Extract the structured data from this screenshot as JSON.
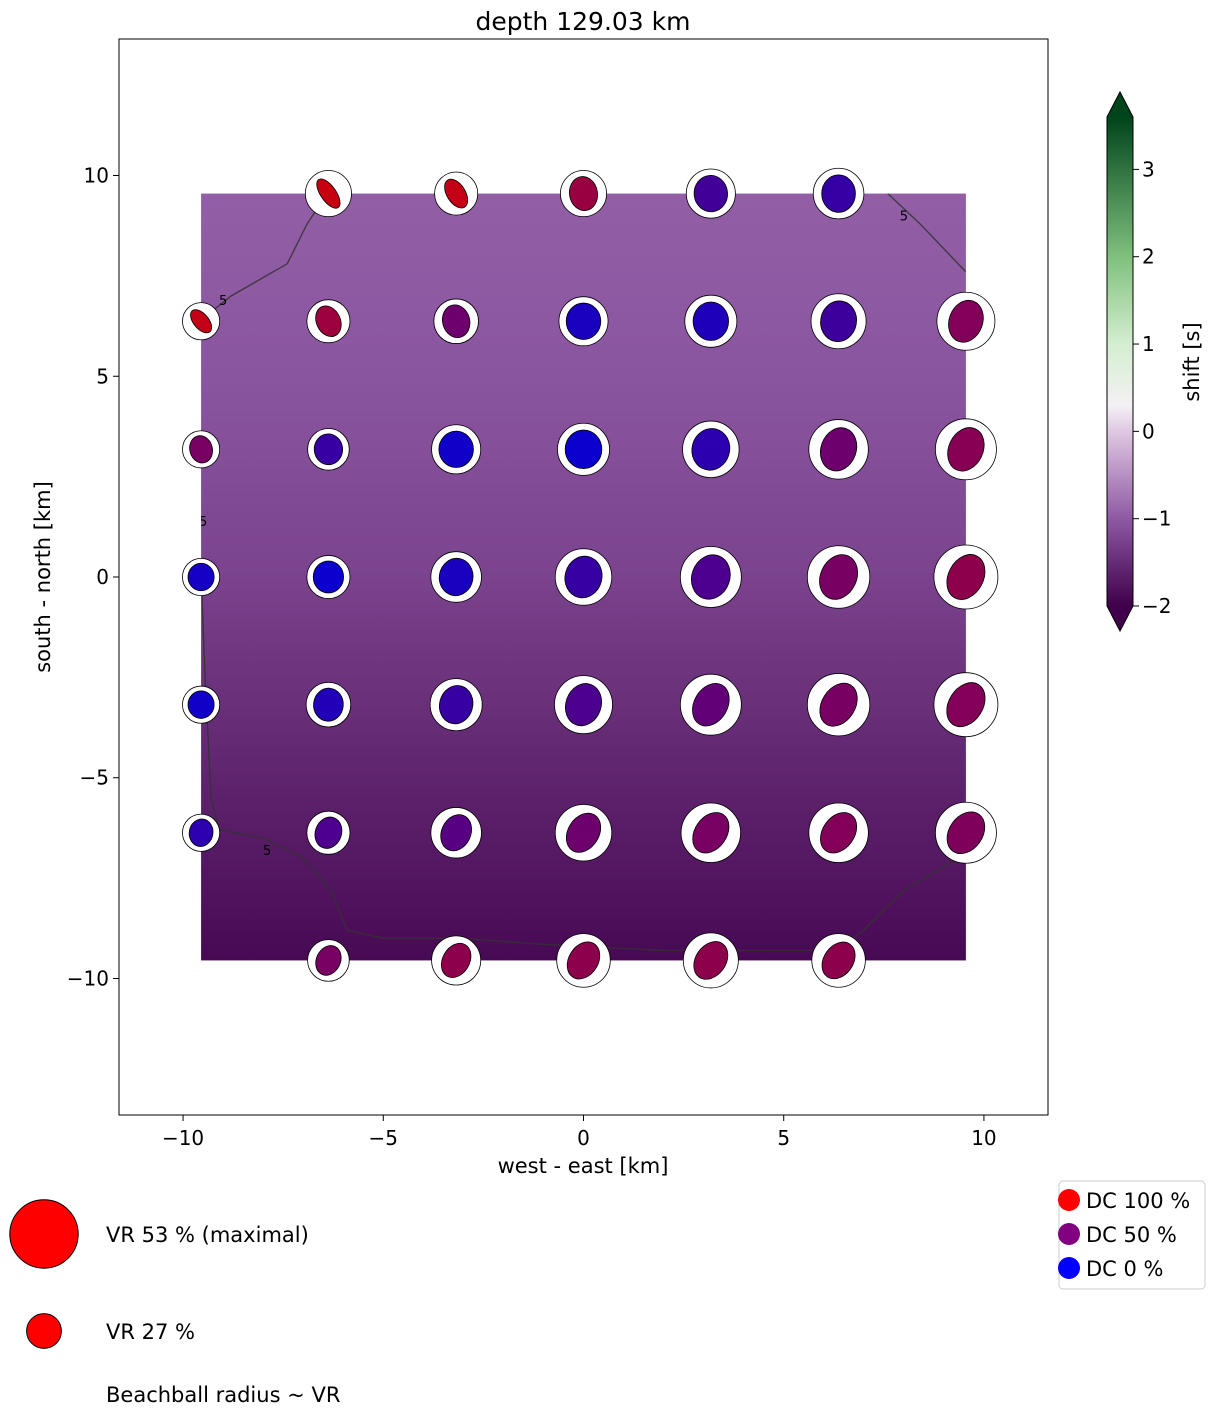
{
  "chart_data": {
    "type": "heatmap",
    "title": "depth 129.03 km",
    "xlabel": "west - east [km]",
    "ylabel": "south - north [km]",
    "xlim": [
      -11.6,
      11.6
    ],
    "ylim": [
      -13.4,
      13.4
    ],
    "xticks": [
      -10,
      -5,
      0,
      5,
      10
    ],
    "xtick_labels": [
      "−10",
      "−5",
      "0",
      "5",
      "10"
    ],
    "yticks": [
      -10,
      -5,
      0,
      5,
      10
    ],
    "ytick_labels": [
      "−10",
      "−5",
      "0",
      "5",
      "10"
    ],
    "field_extent": {
      "x": [
        -9.55,
        9.55
      ],
      "y": [
        -9.55,
        9.55
      ]
    },
    "field_gradient_stops": [
      {
        "y": 9.55,
        "shift": -0.95
      },
      {
        "y": 5.0,
        "shift": -1.05
      },
      {
        "y": 0.0,
        "shift": -1.25
      },
      {
        "y": -5.0,
        "shift": -1.6
      },
      {
        "y": -9.55,
        "shift": -1.9
      }
    ],
    "contour": {
      "level": 5,
      "label": "5",
      "segments": [
        [
          [
            -9.55,
            6.4
          ],
          [
            -8.8,
            7.0
          ],
          [
            -7.4,
            7.8
          ],
          [
            -6.9,
            8.8
          ],
          [
            -6.4,
            9.55
          ]
        ],
        [
          [
            7.6,
            9.55
          ],
          [
            8.4,
            8.8
          ],
          [
            9.55,
            7.6
          ]
        ],
        [
          [
            -9.55,
            0.1
          ],
          [
            -9.45,
            -2.5
          ],
          [
            -9.3,
            -5.5
          ],
          [
            -9.1,
            -6.3
          ],
          [
            -8.0,
            -6.5
          ],
          [
            -7.0,
            -7.0
          ],
          [
            -6.3,
            -7.8
          ],
          [
            -5.9,
            -8.8
          ],
          [
            -5.0,
            -9.0
          ],
          [
            -3.0,
            -9.0
          ],
          [
            -1.0,
            -9.15
          ],
          [
            2.0,
            -9.3
          ],
          [
            4.5,
            -9.3
          ],
          [
            6.3,
            -9.3
          ],
          [
            7.0,
            -8.8
          ],
          [
            8.0,
            -7.8
          ],
          [
            9.55,
            -6.9
          ]
        ]
      ],
      "label_points": [
        [
          -9.0,
          6.9
        ],
        [
          8.0,
          9.0
        ],
        [
          -9.5,
          1.4
        ],
        [
          -7.9,
          -6.8
        ]
      ]
    },
    "colorbar": {
      "label": "shift [s]",
      "min": -2.0,
      "max": 3.6,
      "ticks": [
        3,
        2,
        1,
        0,
        -1,
        -2
      ],
      "tick_labels": [
        "3",
        "2",
        "1",
        "0",
        "−1",
        "−2"
      ],
      "colormap": [
        {
          "v": -2.0,
          "color": "#40004b"
        },
        {
          "v": -1.0,
          "color": "#8e59a3"
        },
        {
          "v": 0.0,
          "color": "#e0c8e2"
        },
        {
          "v": 0.3,
          "color": "#f4f1f4"
        },
        {
          "v": 1.0,
          "color": "#d4eecf"
        },
        {
          "v": 2.0,
          "color": "#7fc07d"
        },
        {
          "v": 3.6,
          "color": "#00441b"
        }
      ]
    },
    "beachball_grid": {
      "x": [
        -9.55,
        -6.37,
        -3.18,
        0,
        3.18,
        6.37,
        9.55
      ],
      "y": [
        9.55,
        6.37,
        3.18,
        0,
        -3.18,
        -6.37,
        -9.55
      ]
    },
    "beachballs": [
      {
        "x": -6.37,
        "y": 9.55,
        "vr": 31,
        "dc": 92,
        "strike": -35,
        "elong": 0.45
      },
      {
        "x": -3.18,
        "y": 9.55,
        "vr": 29,
        "dc": 90,
        "strike": -32,
        "elong": 0.58
      },
      {
        "x": 0,
        "y": 9.55,
        "vr": 31,
        "dc": 70,
        "strike": -10,
        "elong": 0.82
      },
      {
        "x": 3.18,
        "y": 9.55,
        "vr": 33,
        "dc": 30,
        "strike": -5,
        "elong": 0.92
      },
      {
        "x": 6.37,
        "y": 9.55,
        "vr": 34,
        "dc": 24,
        "strike": 0,
        "elong": 0.9
      },
      {
        "x": -9.55,
        "y": 6.37,
        "vr": 25,
        "dc": 90,
        "strike": -40,
        "elong": 0.55
      },
      {
        "x": -6.37,
        "y": 6.37,
        "vr": 29,
        "dc": 72,
        "strike": -25,
        "elong": 0.75
      },
      {
        "x": -3.18,
        "y": 6.37,
        "vr": 30,
        "dc": 50,
        "strike": -15,
        "elong": 0.82
      },
      {
        "x": 0,
        "y": 6.37,
        "vr": 33,
        "dc": 12,
        "strike": 0,
        "elong": 0.95
      },
      {
        "x": 3.18,
        "y": 6.37,
        "vr": 35,
        "dc": 14,
        "strike": 0,
        "elong": 0.92
      },
      {
        "x": 6.37,
        "y": 6.37,
        "vr": 37,
        "dc": 28,
        "strike": 10,
        "elong": 0.88
      },
      {
        "x": 9.55,
        "y": 6.37,
        "vr": 39,
        "dc": 60,
        "strike": 20,
        "elong": 0.78
      },
      {
        "x": -9.55,
        "y": 3.18,
        "vr": 25,
        "dc": 55,
        "strike": -15,
        "elong": 0.82
      },
      {
        "x": -6.37,
        "y": 3.18,
        "vr": 28,
        "dc": 25,
        "strike": -5,
        "elong": 0.92
      },
      {
        "x": -3.18,
        "y": 3.18,
        "vr": 33,
        "dc": 8,
        "strike": 0,
        "elong": 0.95
      },
      {
        "x": 0,
        "y": 3.18,
        "vr": 35,
        "dc": 5,
        "strike": 0,
        "elong": 0.95
      },
      {
        "x": 3.18,
        "y": 3.18,
        "vr": 38,
        "dc": 20,
        "strike": 15,
        "elong": 0.9
      },
      {
        "x": 6.37,
        "y": 3.18,
        "vr": 40,
        "dc": 50,
        "strike": 20,
        "elong": 0.8
      },
      {
        "x": 9.55,
        "y": 3.18,
        "vr": 41,
        "dc": 62,
        "strike": 25,
        "elong": 0.76
      },
      {
        "x": -9.55,
        "y": 0,
        "vr": 25,
        "dc": 10,
        "strike": 0,
        "elong": 0.95
      },
      {
        "x": -6.37,
        "y": 0,
        "vr": 29,
        "dc": 5,
        "strike": 0,
        "elong": 0.95
      },
      {
        "x": -3.18,
        "y": 0,
        "vr": 34,
        "dc": 12,
        "strike": 10,
        "elong": 0.9
      },
      {
        "x": 0,
        "y": 0,
        "vr": 38,
        "dc": 25,
        "strike": 15,
        "elong": 0.88
      },
      {
        "x": 3.18,
        "y": 0,
        "vr": 41,
        "dc": 35,
        "strike": 20,
        "elong": 0.84
      },
      {
        "x": 6.37,
        "y": 0,
        "vr": 42,
        "dc": 55,
        "strike": 25,
        "elong": 0.78
      },
      {
        "x": 9.55,
        "y": 0,
        "vr": 43,
        "dc": 65,
        "strike": 28,
        "elong": 0.74
      },
      {
        "x": -9.55,
        "y": -3.18,
        "vr": 25,
        "dc": 8,
        "strike": 0,
        "elong": 0.95
      },
      {
        "x": -6.37,
        "y": -3.18,
        "vr": 30,
        "dc": 15,
        "strike": 5,
        "elong": 0.9
      },
      {
        "x": -3.18,
        "y": -3.18,
        "vr": 35,
        "dc": 25,
        "strike": 15,
        "elong": 0.86
      },
      {
        "x": 0,
        "y": -3.18,
        "vr": 39,
        "dc": 35,
        "strike": 20,
        "elong": 0.82
      },
      {
        "x": 3.18,
        "y": -3.18,
        "vr": 41,
        "dc": 45,
        "strike": 30,
        "elong": 0.74
      },
      {
        "x": 6.37,
        "y": -3.18,
        "vr": 42,
        "dc": 55,
        "strike": 32,
        "elong": 0.72
      },
      {
        "x": 9.55,
        "y": -3.18,
        "vr": 43,
        "dc": 60,
        "strike": 32,
        "elong": 0.72
      },
      {
        "x": -9.55,
        "y": -6.37,
        "vr": 25,
        "dc": 20,
        "strike": 10,
        "elong": 0.86
      },
      {
        "x": -6.37,
        "y": -6.37,
        "vr": 29,
        "dc": 35,
        "strike": 20,
        "elong": 0.82
      },
      {
        "x": -3.18,
        "y": -6.37,
        "vr": 34,
        "dc": 40,
        "strike": 25,
        "elong": 0.78
      },
      {
        "x": 0,
        "y": -6.37,
        "vr": 38,
        "dc": 50,
        "strike": 32,
        "elong": 0.74
      },
      {
        "x": 3.18,
        "y": -6.37,
        "vr": 40,
        "dc": 55,
        "strike": 35,
        "elong": 0.72
      },
      {
        "x": 6.37,
        "y": -6.37,
        "vr": 40,
        "dc": 60,
        "strike": 35,
        "elong": 0.72
      },
      {
        "x": 9.55,
        "y": -6.37,
        "vr": 41,
        "dc": 58,
        "strike": 35,
        "elong": 0.74
      },
      {
        "x": -6.37,
        "y": -9.55,
        "vr": 28,
        "dc": 55,
        "strike": 25,
        "elong": 0.78
      },
      {
        "x": -3.18,
        "y": -9.55,
        "vr": 33,
        "dc": 65,
        "strike": 30,
        "elong": 0.74
      },
      {
        "x": 0,
        "y": -9.55,
        "vr": 36,
        "dc": 65,
        "strike": 32,
        "elong": 0.74
      },
      {
        "x": 3.18,
        "y": -9.55,
        "vr": 37,
        "dc": 65,
        "strike": 35,
        "elong": 0.74
      },
      {
        "x": 6.37,
        "y": -9.55,
        "vr": 36,
        "dc": 65,
        "strike": 35,
        "elong": 0.74
      }
    ],
    "dc_colors": {
      "dc100": "#ff0000",
      "dc50": "#800080",
      "dc0": "#0000ff"
    },
    "dc_legend": [
      {
        "label": "DC 100 %",
        "color": "#ff0000"
      },
      {
        "label": "DC 50 %",
        "color": "#800080"
      },
      {
        "label": "DC 0 %",
        "color": "#0000ff"
      }
    ],
    "vr_legend": [
      {
        "label": "VR 53 % (maximal)",
        "vr": 53,
        "color": "#ff0000"
      },
      {
        "label": "VR 27 %",
        "vr": 27,
        "color": "#ff0000"
      }
    ],
    "radius_note": "Beachball radius ~ VR"
  }
}
